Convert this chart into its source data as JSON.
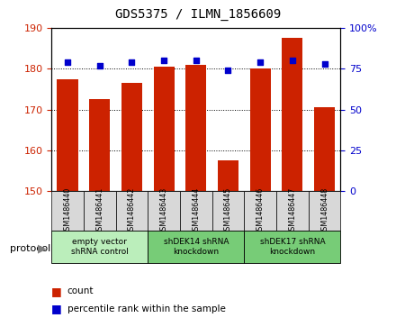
{
  "title": "GDS5375 / ILMN_1856609",
  "samples": [
    "GSM1486440",
    "GSM1486441",
    "GSM1486442",
    "GSM1486443",
    "GSM1486444",
    "GSM1486445",
    "GSM1486446",
    "GSM1486447",
    "GSM1486448"
  ],
  "counts": [
    177.5,
    172.5,
    176.5,
    180.5,
    181.0,
    157.5,
    180.0,
    187.5,
    170.5
  ],
  "percentile_ranks": [
    79,
    77,
    79,
    80,
    80,
    74,
    79,
    80,
    78
  ],
  "ylim_left": [
    150,
    190
  ],
  "ylim_right": [
    0,
    100
  ],
  "yticks_left": [
    150,
    160,
    170,
    180,
    190
  ],
  "yticks_right": [
    0,
    25,
    50,
    75,
    100
  ],
  "bar_color": "#cc2200",
  "dot_color": "#0000cc",
  "bar_width": 0.65,
  "legend_count_label": "count",
  "legend_percentile_label": "percentile rank within the sample",
  "protocol_label": "protocol",
  "background_color": "#ffffff",
  "plot_bg_color": "#ffffff",
  "tick_label_color_left": "#cc2200",
  "tick_label_color_right": "#0000cc",
  "protocol_groups": [
    {
      "indices": [
        0,
        1,
        2
      ],
      "label": "empty vector\nshRNA control",
      "color": "#bbeebb"
    },
    {
      "indices": [
        3,
        4,
        5
      ],
      "label": "shDEK14 shRNA\nknockdown",
      "color": "#77cc77"
    },
    {
      "indices": [
        6,
        7,
        8
      ],
      "label": "shDEK17 shRNA\nknockdown",
      "color": "#77cc77"
    }
  ]
}
